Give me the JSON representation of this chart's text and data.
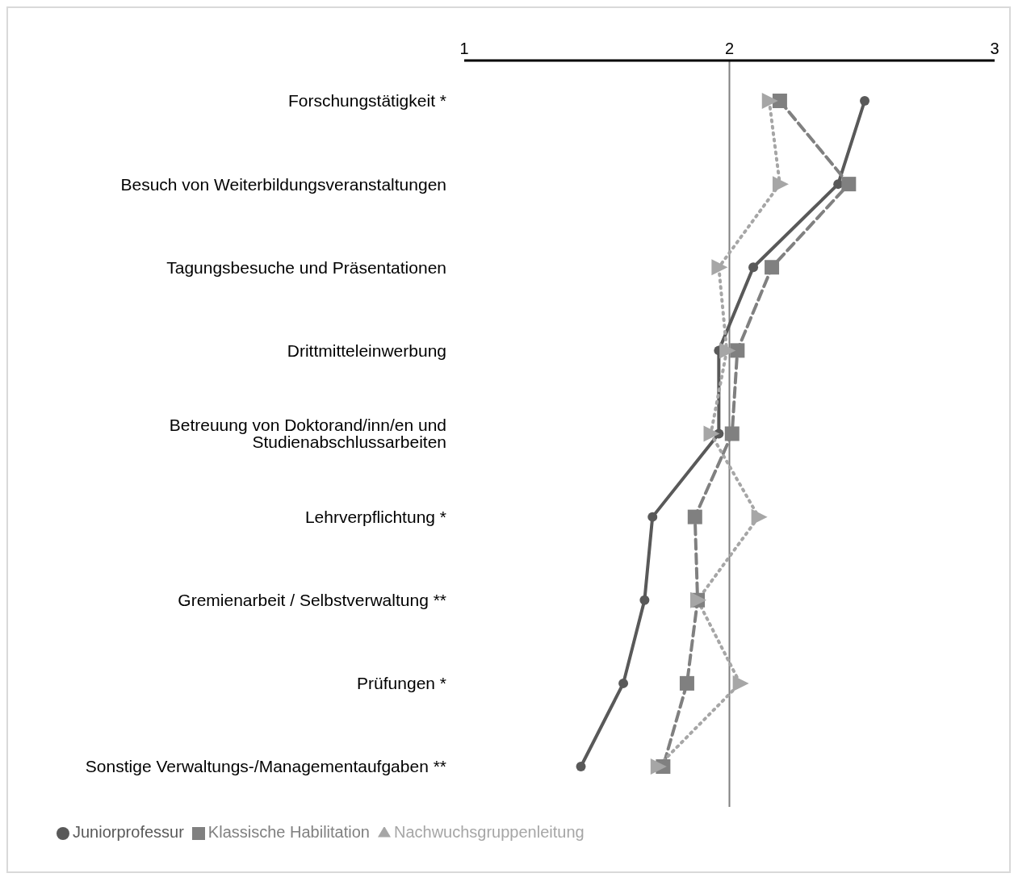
{
  "chart_data": {
    "type": "line",
    "orientation": "horizontal",
    "categories": [
      "Forschungstätigkeit *",
      "Besuch von Weiterbildungsveranstaltungen",
      "Tagungsbesuche und Präsentationen",
      "Drittmitteleinwerbung",
      "Betreuung von Doktorand/inn/en und Studienabschlussarbeiten",
      "Lehrverpflichtung *",
      "Gremienarbeit / Selbstverwaltung **",
      "Prüfungen *",
      "Sonstige Verwaltungs-/Managementaufgaben **"
    ],
    "series": [
      {
        "name": "Juniorprofessur",
        "color": "#595959",
        "marker": "circle",
        "line_style": "solid",
        "values": [
          2.51,
          2.41,
          2.09,
          1.96,
          1.96,
          1.71,
          1.68,
          1.6,
          1.44
        ]
      },
      {
        "name": "Nachwuchsgruppenleitung",
        "color": "#a6a6a6",
        "marker": "triangle",
        "line_style": "dotted",
        "values": [
          2.15,
          2.19,
          1.96,
          1.99,
          1.93,
          2.11,
          1.88,
          2.04,
          1.73
        ]
      },
      {
        "name": "Klassische Habilitation",
        "color": "#808080",
        "marker": "square",
        "line_style": "dashed",
        "values": [
          2.19,
          2.45,
          2.16,
          2.03,
          2.01,
          1.87,
          1.88,
          1.84,
          1.75
        ]
      }
    ],
    "xlim": [
      1,
      3
    ],
    "xticks": [
      1,
      2,
      3
    ],
    "ref_lines": [
      {
        "axis": "x",
        "value": 2,
        "color": "#808080"
      }
    ],
    "legend": "bottom",
    "grid": false
  }
}
